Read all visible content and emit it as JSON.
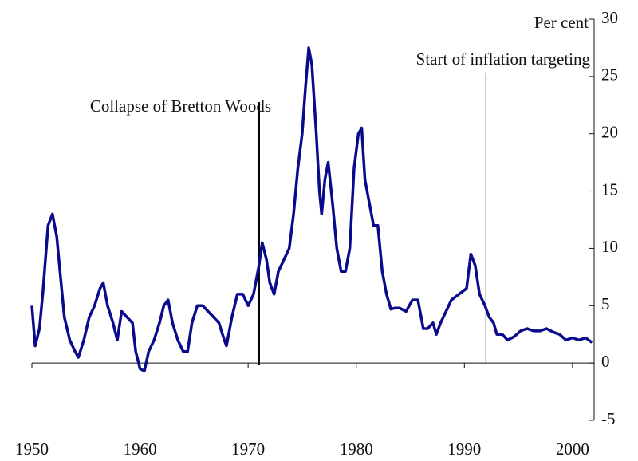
{
  "chart_data": {
    "type": "line",
    "y_axis_label": "Per cent",
    "annotations": [
      {
        "text": "Collapse of Bretton Woods",
        "x": 1971
      },
      {
        "text": "Start of inflation targeting",
        "x": 1992
      }
    ],
    "series": [
      {
        "color": "#0a0a8c",
        "x": [
          1950.0,
          1950.3,
          1950.7,
          1951,
          1951.5,
          1951.9,
          1952.3,
          1952.7,
          1953,
          1953.5,
          1954,
          1954.3,
          1954.8,
          1955.3,
          1955.8,
          1956.3,
          1956.6,
          1957,
          1957.5,
          1957.9,
          1958.3,
          1958.8,
          1959.3,
          1959.6,
          1960,
          1960.4,
          1960.8,
          1961.3,
          1961.8,
          1962.2,
          1962.6,
          1963,
          1963.5,
          1964,
          1964.4,
          1964.8,
          1965.3,
          1965.8,
          1966.3,
          1966.8,
          1967.3,
          1967.8,
          1968,
          1968.5,
          1969,
          1969.5,
          1970,
          1970.5,
          1971,
          1971.3,
          1971.7,
          1972,
          1972.4,
          1972.8,
          1973.3,
          1973.8,
          1974.2,
          1974.6,
          1975,
          1975.3,
          1975.6,
          1975.9,
          1976.3,
          1976.6,
          1976.8,
          1977.1,
          1977.4,
          1977.8,
          1978.2,
          1978.6,
          1979,
          1979.4,
          1979.8,
          1980.2,
          1980.5,
          1980.8,
          1981.2,
          1981.6,
          1982,
          1982.4,
          1982.8,
          1983.2,
          1983.6,
          1984,
          1984.6,
          1985.2,
          1985.7,
          1986.2,
          1986.6,
          1987.1,
          1987.4,
          1987.8,
          1988.3,
          1988.8,
          1989.5,
          1990.2,
          1990.6,
          1991,
          1991.4,
          1991.9,
          1992.3,
          1992.7,
          1993,
          1993.5,
          1994,
          1994.6,
          1995.2,
          1995.8,
          1996.4,
          1997,
          1997.6,
          1998.2,
          1998.8,
          1999.4,
          2000,
          2000.6,
          2001.2,
          2001.8
        ],
        "values": [
          5,
          1.5,
          3,
          6,
          12,
          13,
          11,
          7,
          4,
          2,
          1,
          0.5,
          2,
          4,
          5,
          6.5,
          7,
          5,
          3.5,
          2,
          4.5,
          4,
          3.5,
          1,
          -0.5,
          -0.7,
          1,
          2,
          3.5,
          5,
          5.5,
          3.5,
          2,
          1,
          1,
          3.5,
          5,
          5,
          4.5,
          4,
          3.5,
          2,
          1.5,
          4,
          6,
          6,
          5,
          6,
          8.5,
          10.5,
          9,
          7,
          6,
          8,
          9,
          10,
          13,
          17,
          20,
          24,
          27.5,
          26,
          20,
          15,
          13,
          16,
          17.5,
          14,
          10,
          8,
          8,
          10,
          17,
          20,
          20.5,
          16,
          14,
          12,
          12,
          8,
          6,
          4.7,
          4.8,
          4.8,
          4.5,
          5.5,
          5.5,
          3,
          3,
          3.5,
          2.5,
          3.5,
          4.5,
          5.5,
          6,
          6.5,
          9.5,
          8.5,
          6,
          5,
          4,
          3.5,
          2.5,
          2.5,
          2,
          2.3,
          2.8,
          3,
          2.8,
          2.8,
          3,
          2.7,
          2.5,
          2,
          2.2,
          2,
          2.2,
          1.8
        ]
      }
    ],
    "xlim": [
      1950,
      2002
    ],
    "xticks": [
      1950,
      1960,
      1970,
      1980,
      1990,
      2000
    ],
    "ylim": [
      -5,
      30
    ],
    "yticks": [
      -5,
      0,
      5,
      10,
      15,
      20,
      25,
      30
    ]
  }
}
